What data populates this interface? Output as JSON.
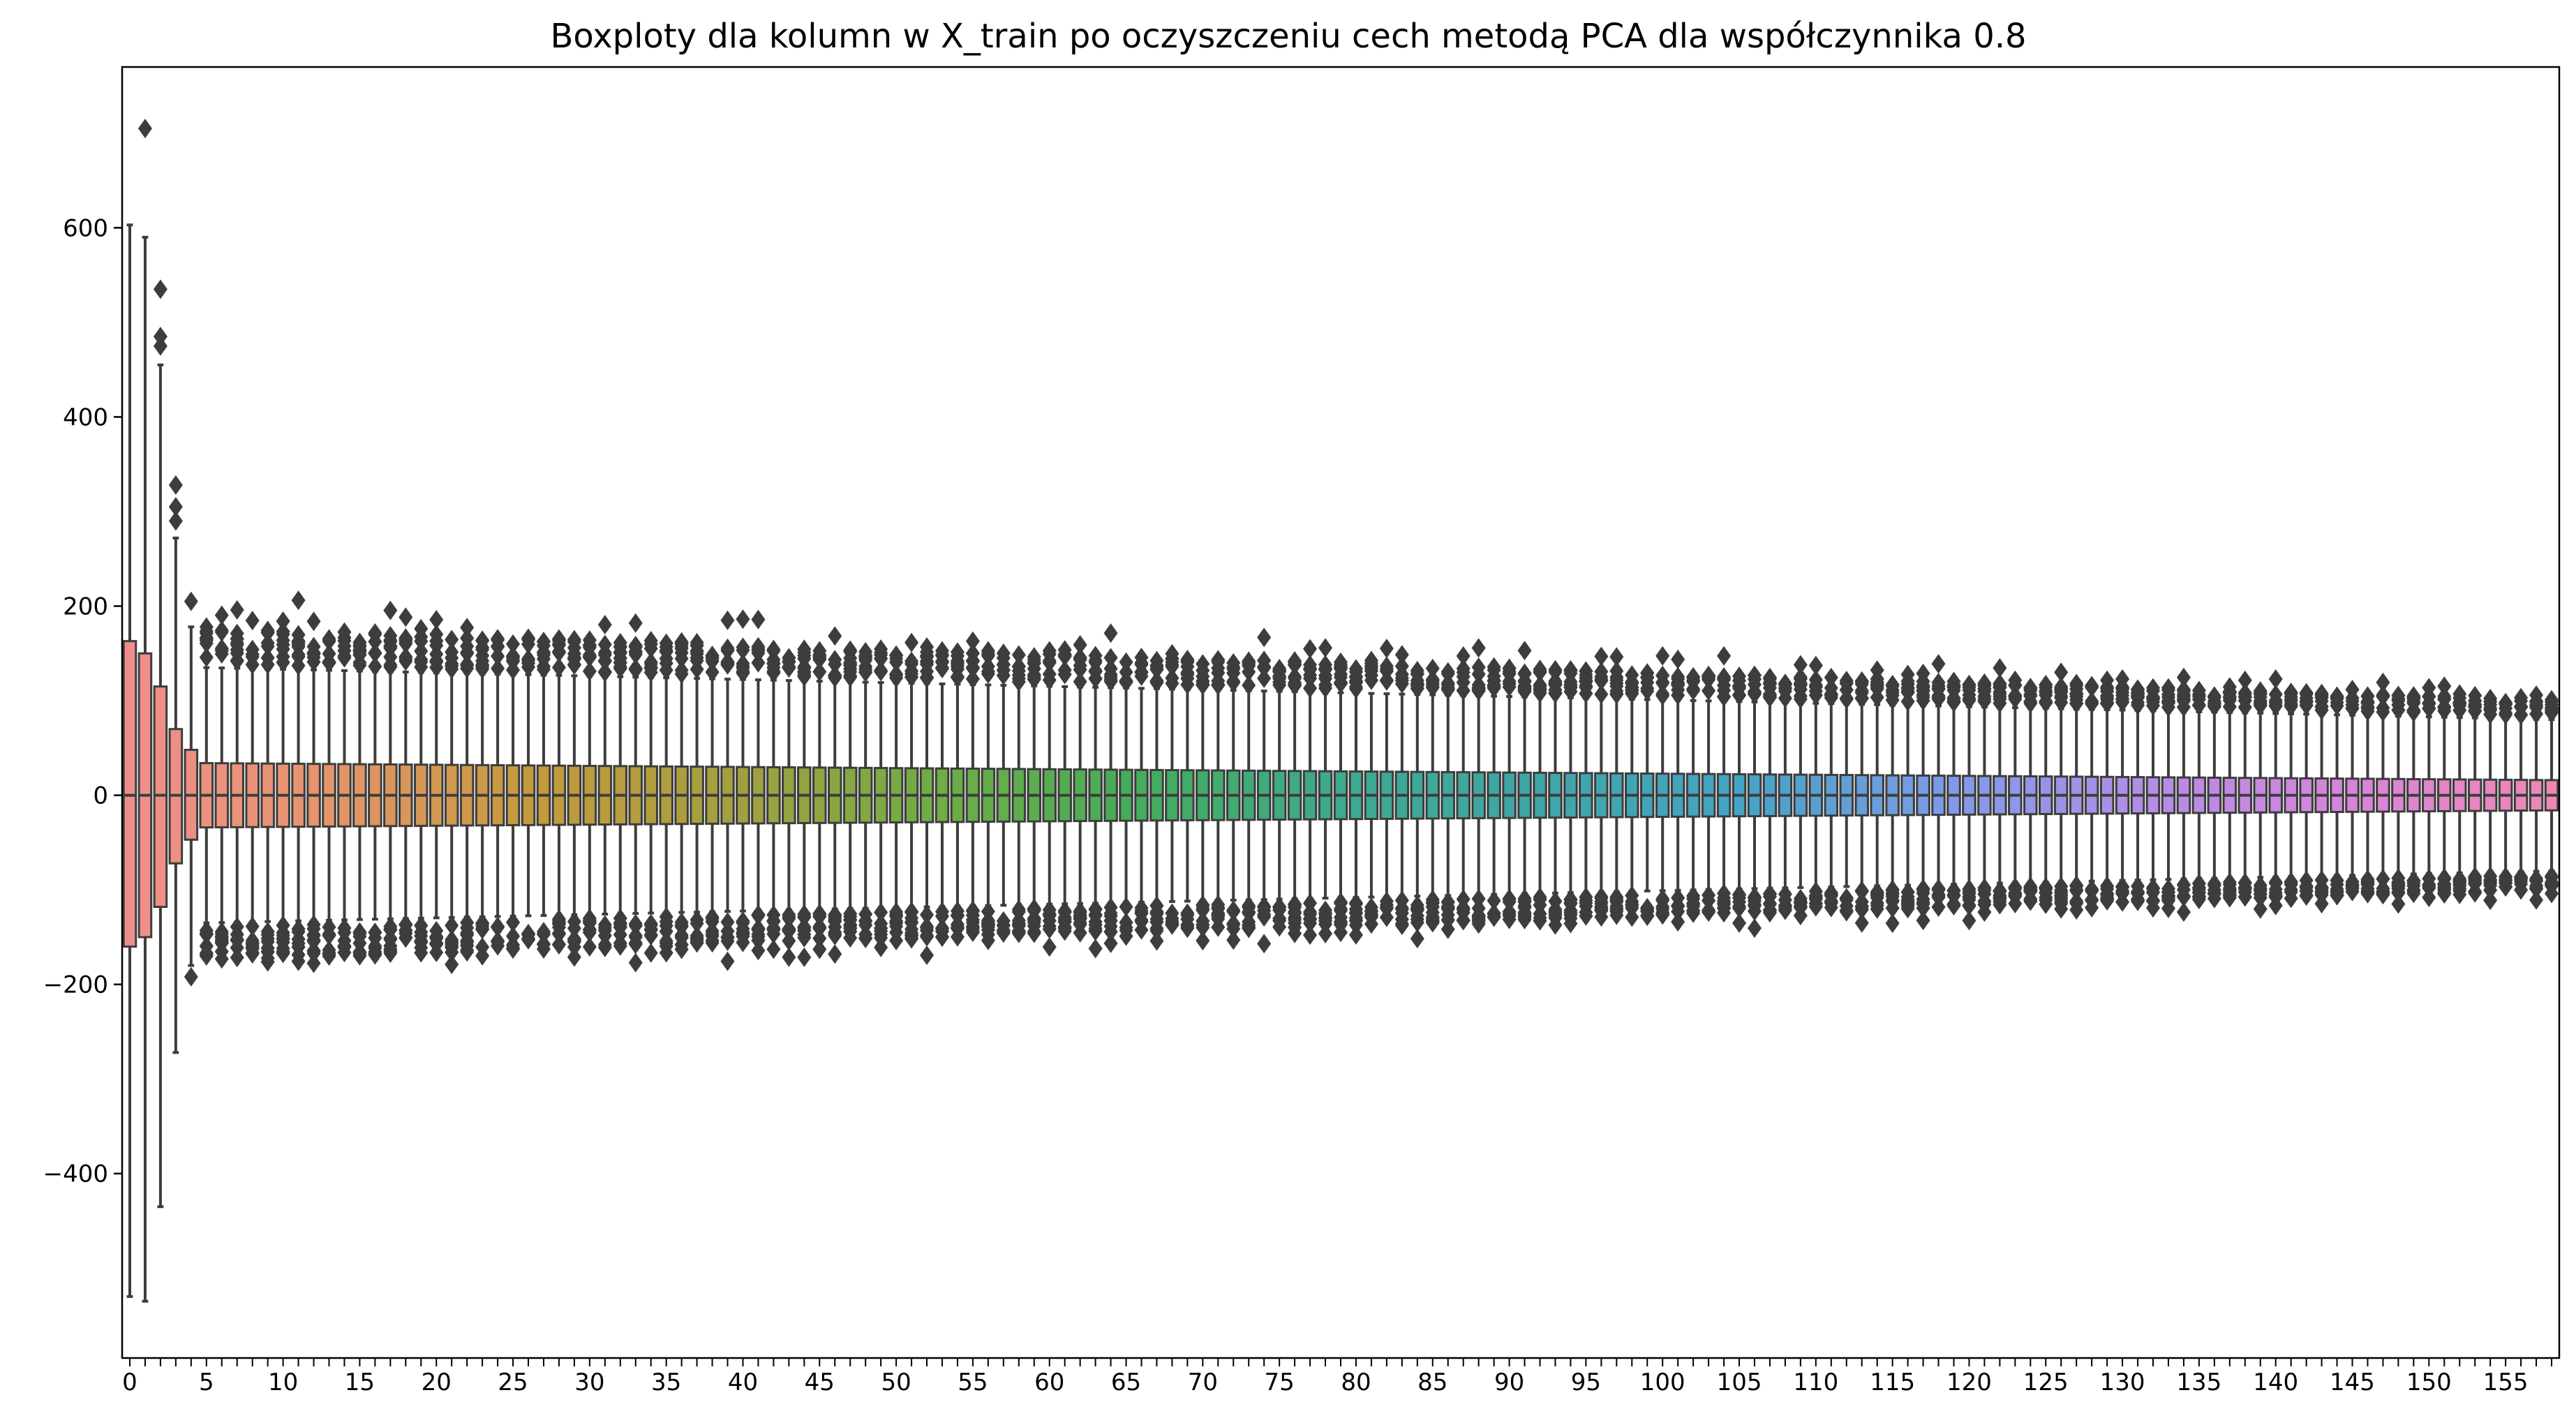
{
  "chart_data": {
    "type": "box",
    "title": "Boxploty dla kolumn w X_train po oczyszczeniu cech metodą PCA dla współczynnika 0.8",
    "xlabel": "",
    "ylabel": "",
    "x_ticks": [
      0,
      5,
      10,
      15,
      20,
      25,
      30,
      35,
      40,
      45,
      50,
      55,
      60,
      65,
      70,
      75,
      80,
      85,
      90,
      95,
      100,
      105,
      110,
      115,
      120,
      125,
      130,
      135,
      140,
      145,
      150,
      155
    ],
    "y_ticks": [
      -400,
      -200,
      0,
      200,
      400,
      600
    ],
    "ylim": [
      -595,
      770
    ],
    "xlim": [
      -0.5,
      158.5
    ],
    "n_columns": 159,
    "grid": false,
    "legend": "none",
    "box_color": "#3d3d3d",
    "color_stops": [
      "#f08e8c",
      "#e4956a",
      "#c49a3c",
      "#a3a040",
      "#70ad45",
      "#44ac5a",
      "#3ea98f",
      "#3fa6a8",
      "#45a3c4",
      "#7e9be8",
      "#b38de6",
      "#d884dc",
      "#ef87b4"
    ],
    "summary": {
      "first_columns": [
        {
          "column": 0,
          "whisker_low": -530,
          "q1": -160,
          "median": 0,
          "q3": 163,
          "whisker_high": 603,
          "outliers": []
        },
        {
          "column": 1,
          "whisker_low": -535,
          "q1": -150,
          "median": 0,
          "q3": 150,
          "whisker_high": 590,
          "outliers": [
            705
          ]
        },
        {
          "column": 2,
          "whisker_low": -435,
          "q1": -118,
          "median": 0,
          "q3": 115,
          "whisker_high": 455,
          "outliers": [
            535,
            485,
            475
          ]
        },
        {
          "column": 3,
          "whisker_low": -272,
          "q1": -72,
          "median": 0,
          "q3": 70,
          "whisker_high": 272,
          "outliers": [
            328,
            305,
            290
          ]
        },
        {
          "column": 4,
          "whisker_low": -180,
          "q1": -47,
          "median": 0,
          "q3": 48,
          "whisker_high": 178,
          "outliers": [
            205,
            -192
          ]
        }
      ],
      "remaining_columns_q3_range": [
        34,
        16
      ],
      "remaining_columns_whisker_range": [
        135,
        80
      ],
      "remaining_columns_outlier_extent_range": [
        210,
        115
      ]
    }
  }
}
